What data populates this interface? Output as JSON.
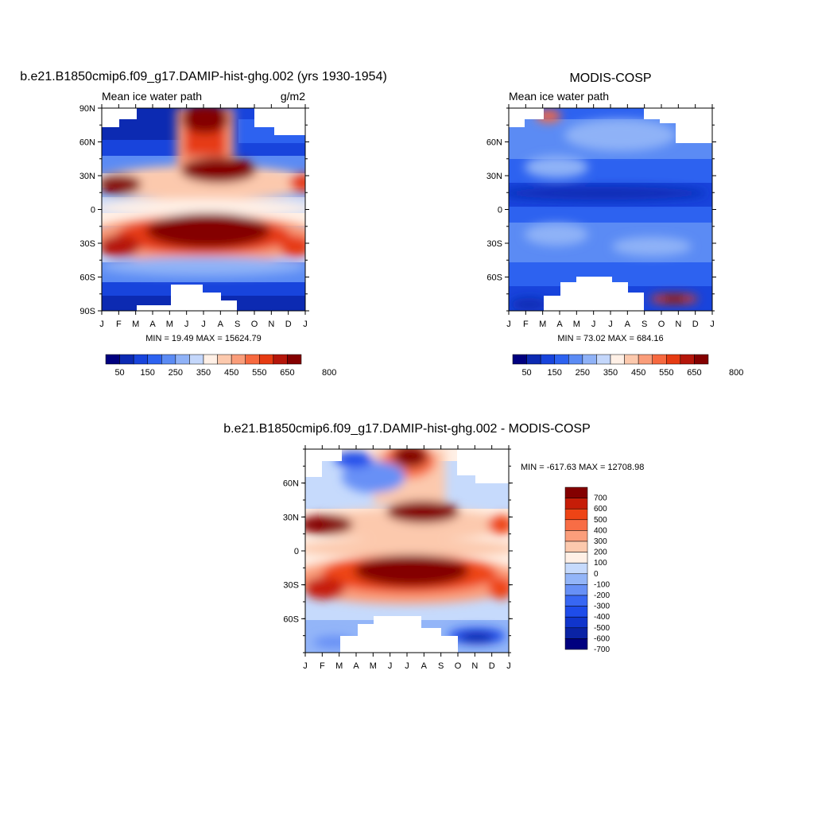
{
  "colors": {
    "levels12": [
      "#00007f",
      "#0c2ab2",
      "#1844dc",
      "#2d62f0",
      "#5b8bf4",
      "#8fb2f7",
      "#c4d7fb",
      "#fff0e6",
      "#fcc9ad",
      "#fa9d7a",
      "#f7693f",
      "#e63b12",
      "#b5160a",
      "#840000"
    ],
    "levels15": [
      "#00007f",
      "#0a23a5",
      "#1035cc",
      "#1e4cea",
      "#3867f3",
      "#6790f6",
      "#93b5f8",
      "#c6dafc",
      "#fff0e6",
      "#fcc9ad",
      "#fb9e7b",
      "#f86d45",
      "#ee4415",
      "#c61d08",
      "#840000"
    ],
    "missing": "#ffffff"
  },
  "chart_data": [
    {
      "type": "heatmap",
      "title": "b.e21.B1850cmip6.f09_g17.DAMIP-hist-ghg.002 (yrs 1930-1954)",
      "left_label": "Mean ice water path",
      "right_label": "g/m2",
      "x_ticks": [
        "J",
        "F",
        "M",
        "A",
        "M",
        "J",
        "J",
        "A",
        "S",
        "O",
        "N",
        "D",
        "J"
      ],
      "y_ticks": [
        "90N",
        "60N",
        "30N",
        "0",
        "30S",
        "60S",
        "90S"
      ],
      "ylim": [
        -90,
        90
      ],
      "stats": "MIN =  19.49 MAX = 15624.79",
      "colorbar": {
        "orientation": "horizontal",
        "levels": [
          50,
          100,
          150,
          200,
          250,
          300,
          350,
          400,
          450,
          500,
          550,
          600,
          650,
          700,
          750,
          800
        ],
        "labels": [
          "50",
          "150",
          "250",
          "350",
          "450",
          "550",
          "650",
          "800"
        ]
      }
    },
    {
      "type": "heatmap",
      "title": "MODIS-COSP",
      "left_label": "Mean ice water path",
      "right_label": "",
      "x_ticks": [
        "J",
        "F",
        "M",
        "A",
        "M",
        "J",
        "J",
        "A",
        "S",
        "O",
        "N",
        "D",
        "J"
      ],
      "y_ticks": [
        "60N",
        "30N",
        "0",
        "30S",
        "60S"
      ],
      "ylim": [
        -90,
        90
      ],
      "stats": "MIN =  73.02 MAX = 684.16",
      "colorbar": {
        "orientation": "horizontal",
        "levels": [
          50,
          100,
          150,
          200,
          250,
          300,
          350,
          400,
          450,
          500,
          550,
          600,
          650,
          700,
          750,
          800
        ],
        "labels": [
          "50",
          "150",
          "250",
          "350",
          "450",
          "550",
          "650",
          "800"
        ]
      }
    },
    {
      "type": "heatmap",
      "title": "b.e21.B1850cmip6.f09_g17.DAMIP-hist-ghg.002 - MODIS-COSP",
      "left_label": "",
      "right_label": "",
      "x_ticks": [
        "J",
        "F",
        "M",
        "A",
        "M",
        "J",
        "J",
        "A",
        "S",
        "O",
        "N",
        "D",
        "J"
      ],
      "y_ticks": [
        "60N",
        "30N",
        "0",
        "30S",
        "60S"
      ],
      "ylim": [
        -90,
        90
      ],
      "stats": "MIN = -617.63 MAX = 12708.98",
      "colorbar": {
        "orientation": "vertical",
        "levels": [
          700,
          600,
          500,
          400,
          300,
          200,
          100,
          0,
          -100,
          -200,
          -300,
          -400,
          -500,
          -600,
          -700
        ],
        "labels": [
          "700",
          "600",
          "500",
          "400",
          "300",
          "200",
          "100",
          "0",
          "-100",
          "-200",
          "-300",
          "-400",
          "-500",
          "-600",
          "-700"
        ]
      }
    }
  ]
}
